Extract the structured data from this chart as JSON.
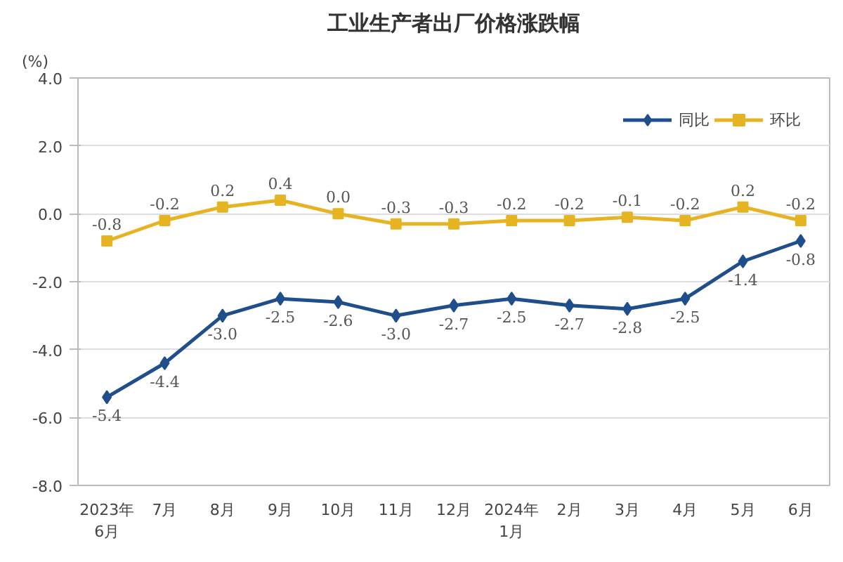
{
  "chart_data": {
    "type": "line",
    "title": "工业生产者出厂价格涨跌幅",
    "ylabel": "(%)",
    "categories": [
      "2023年\n6月",
      "7月",
      "8月",
      "9月",
      "10月",
      "11月",
      "12月",
      "2024年\n1月",
      "2月",
      "3月",
      "4月",
      "5月",
      "6月"
    ],
    "series": [
      {
        "name": "同比",
        "color": "#1f4e8c",
        "marker": "diamond",
        "values": [
          -5.4,
          -4.4,
          -3.0,
          -2.5,
          -2.6,
          -3.0,
          -2.7,
          -2.5,
          -2.7,
          -2.8,
          -2.5,
          -1.4,
          -0.8
        ],
        "value_labels": [
          "-5.4",
          "-4.4",
          "-3.0",
          "-2.5",
          "-2.6",
          "-3.0",
          "-2.7",
          "-2.5",
          "-2.7",
          "-2.8",
          "-2.5",
          "-1.4",
          "-0.8"
        ]
      },
      {
        "name": "环比",
        "color": "#e6b422",
        "marker": "square",
        "values": [
          -0.8,
          -0.2,
          0.2,
          0.4,
          0.0,
          -0.3,
          -0.3,
          -0.2,
          -0.2,
          -0.1,
          -0.2,
          0.2,
          -0.2
        ],
        "value_labels": [
          "-0.8",
          "-0.2",
          "0.2",
          "0.4",
          "0.0",
          "-0.3",
          "-0.3",
          "-0.2",
          "-0.2",
          "-0.1",
          "-0.2",
          "0.2",
          "-0.2"
        ]
      }
    ],
    "ylim": [
      -8.0,
      4.0
    ],
    "yticks": [
      {
        "value": -8,
        "label": "-8.0"
      },
      {
        "value": -6,
        "label": "-6.0"
      },
      {
        "value": -4,
        "label": "-4.0"
      },
      {
        "value": -2,
        "label": "-2.0"
      },
      {
        "value": 0,
        "label": "0.0"
      },
      {
        "value": 2,
        "label": "2.0"
      },
      {
        "value": 4,
        "label": "4.0"
      }
    ],
    "grid": "y",
    "legend": "top right",
    "line_style": "solid"
  }
}
